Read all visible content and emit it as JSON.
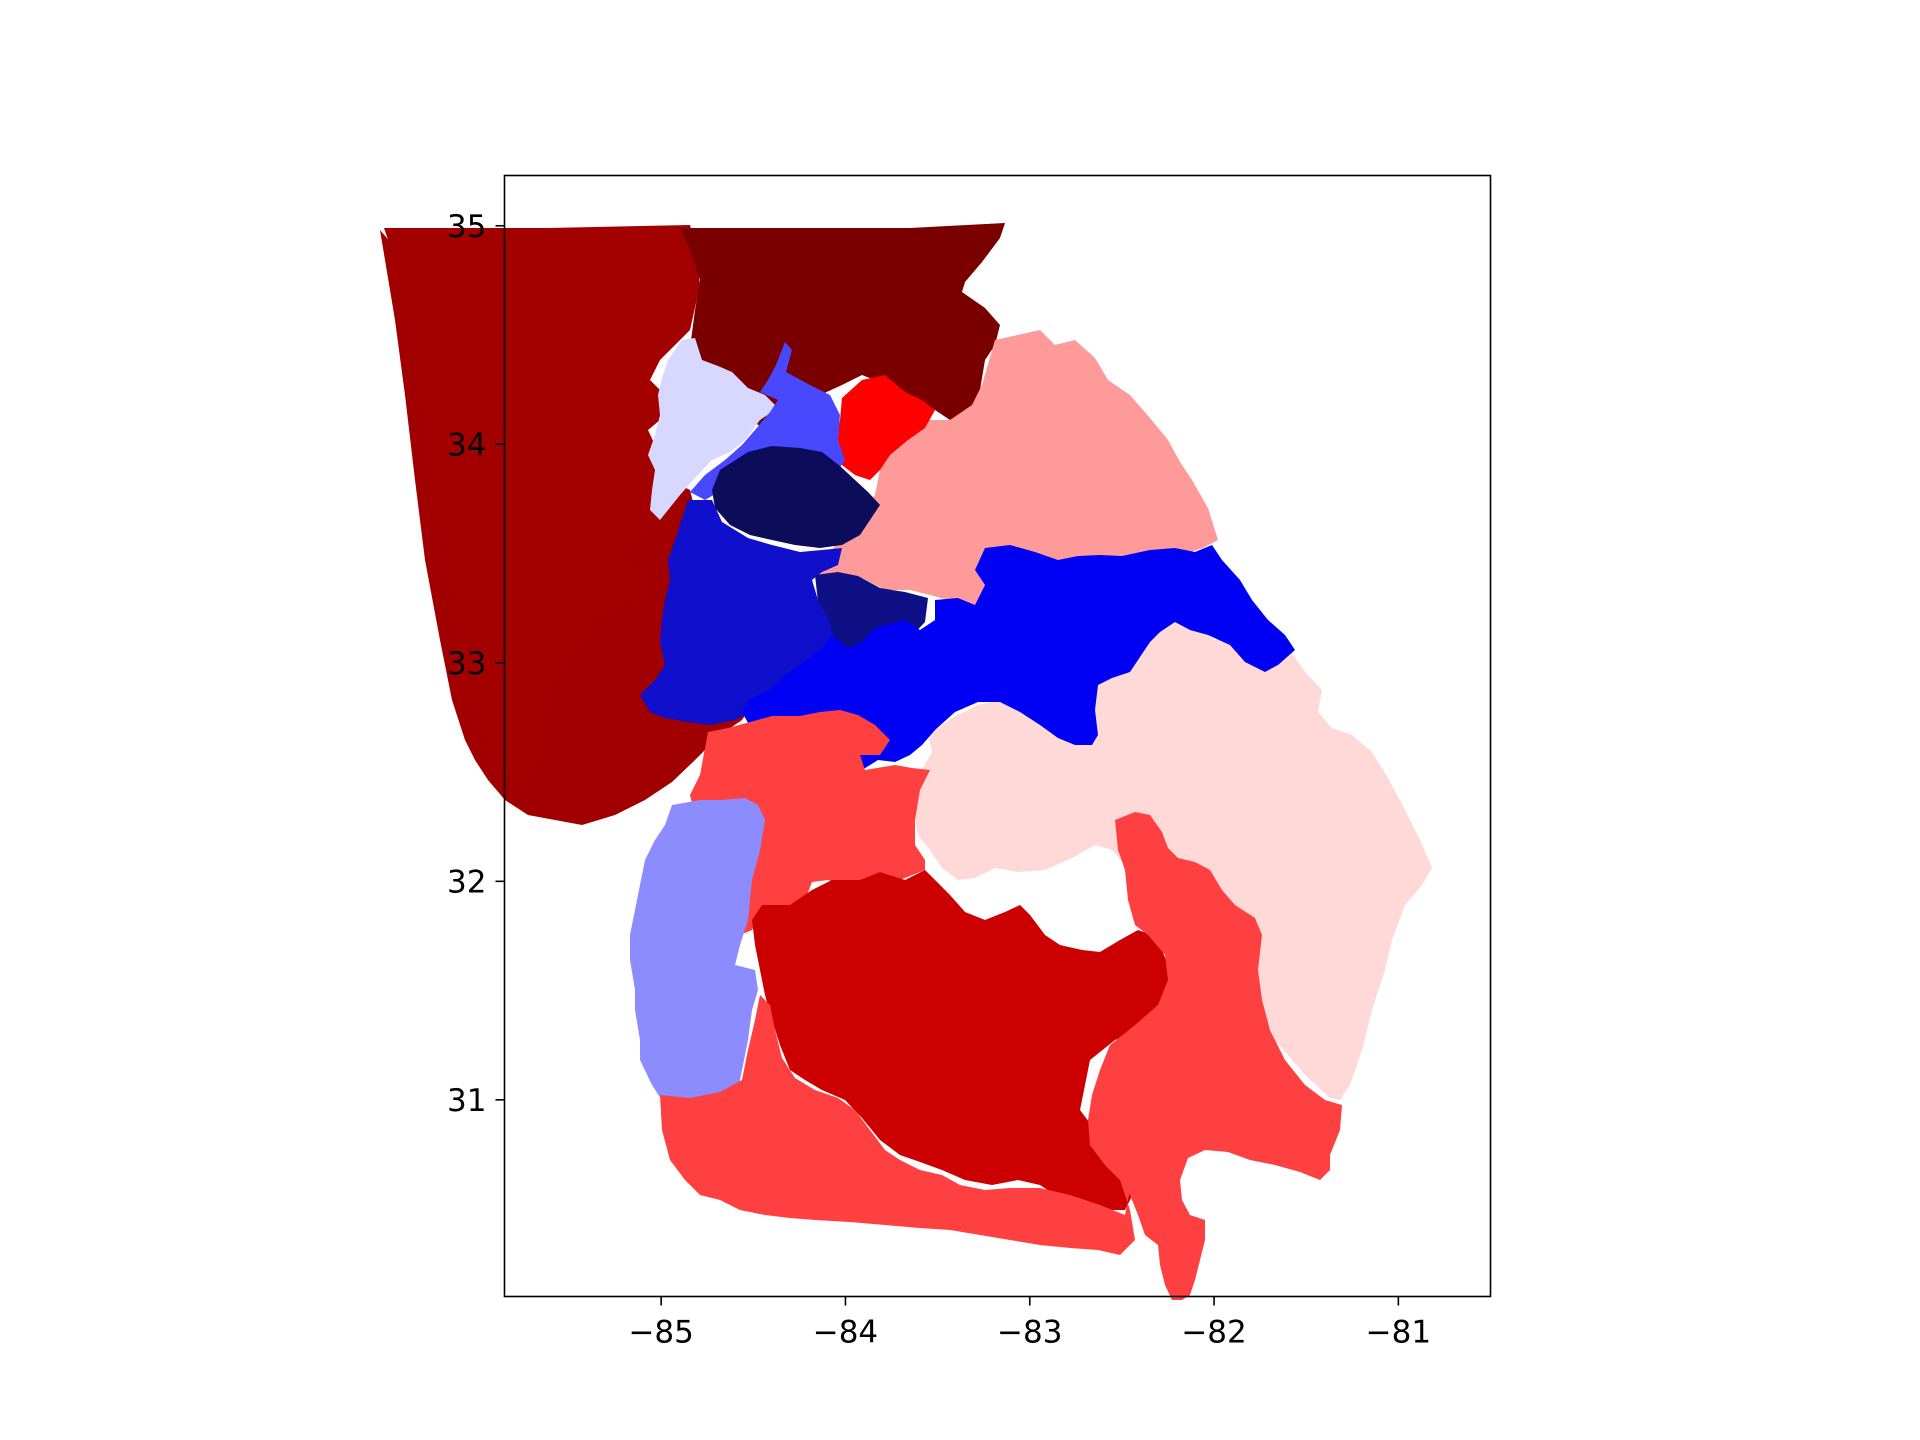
{
  "map": {
    "type": "choropleth",
    "title": "",
    "xlabel": "",
    "ylabel": "",
    "x_ticks": [
      "−85",
      "−84",
      "−83",
      "−82",
      "−81"
    ],
    "y_ticks": [
      "35",
      "34",
      "33",
      "32",
      "31"
    ],
    "x_tick_values": [
      -85,
      -84,
      -83,
      -82,
      -81
    ],
    "y_tick_values": [
      35,
      34,
      33,
      32,
      31
    ],
    "xlim": [
      -85.85,
      -80.5
    ],
    "ylim": [
      30.1,
      35.23
    ],
    "districts": [
      {
        "id": "northwest",
        "color": "#a30000"
      },
      {
        "id": "north",
        "color": "#7a0000"
      },
      {
        "id": "northeast",
        "color": "#ff9a9a"
      },
      {
        "id": "gainesville",
        "color": "#ff0000"
      },
      {
        "id": "cherokee",
        "color": "#d8d8ff"
      },
      {
        "id": "cobb",
        "color": "#4848ff"
      },
      {
        "id": "atlanta-core",
        "color": "#0c0c5a"
      },
      {
        "id": "southwest-metro",
        "color": "#1010cc"
      },
      {
        "id": "south-metro",
        "color": "#101086"
      },
      {
        "id": "central-band",
        "color": "#0000f5"
      },
      {
        "id": "west-central",
        "color": "#a00000"
      },
      {
        "id": "middle",
        "color": "#ff4040"
      },
      {
        "id": "southwest",
        "color": "#8c8cff"
      },
      {
        "id": "south-central",
        "color": "#cc0000"
      },
      {
        "id": "south",
        "color": "#ff4040"
      },
      {
        "id": "coastal",
        "color": "#ff4040"
      },
      {
        "id": "east",
        "color": "#ffd8d8"
      }
    ]
  }
}
